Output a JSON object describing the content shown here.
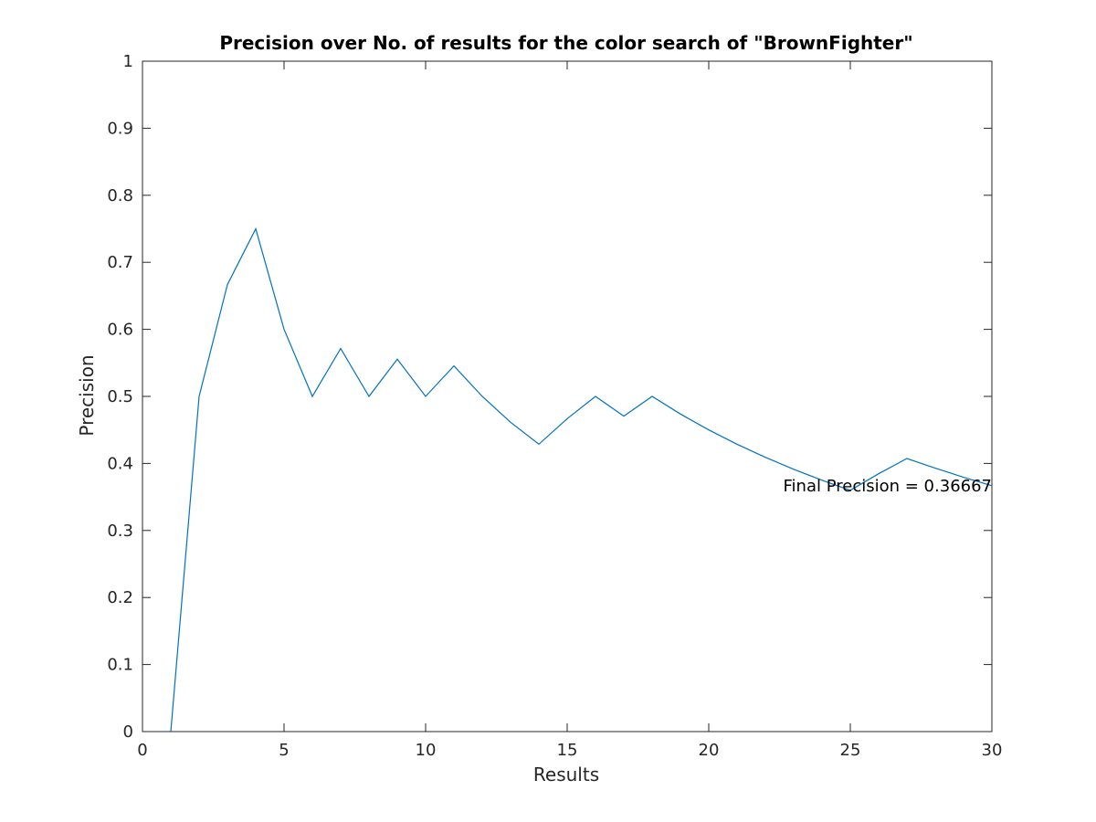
{
  "chart_data": {
    "type": "line",
    "title": "Precision over No. of results for the color search of \"BrownFighter\"",
    "xlabel": "Results",
    "ylabel": "Precision",
    "xlim": [
      0,
      30
    ],
    "ylim": [
      0,
      1
    ],
    "xticks": [
      0,
      5,
      10,
      15,
      20,
      25,
      30
    ],
    "yticks": [
      0,
      0.1,
      0.2,
      0.3,
      0.4,
      0.5,
      0.6,
      0.7,
      0.8,
      0.9,
      1
    ],
    "xtick_labels": [
      "0",
      "5",
      "10",
      "15",
      "20",
      "25",
      "30"
    ],
    "ytick_labels": [
      "0",
      "0.1",
      "0.2",
      "0.3",
      "0.4",
      "0.5",
      "0.6",
      "0.7",
      "0.8",
      "0.9",
      "1"
    ],
    "grid": false,
    "series": [
      {
        "color": "#0072bd",
        "x": [
          1,
          2,
          3,
          4,
          5,
          6,
          7,
          8,
          9,
          10,
          11,
          12,
          13,
          14,
          15,
          16,
          17,
          18,
          19,
          20,
          21,
          22,
          23,
          24,
          25,
          26,
          27,
          28,
          29,
          30
        ],
        "y": [
          0,
          0.5,
          0.6667,
          0.75,
          0.6,
          0.5,
          0.5714,
          0.5,
          0.5556,
          0.5,
          0.5455,
          0.5,
          0.4615,
          0.4286,
          0.4667,
          0.5,
          0.4706,
          0.5,
          0.4737,
          0.45,
          0.4286,
          0.4091,
          0.3913,
          0.375,
          0.36,
          0.3846,
          0.4074,
          0.3929,
          0.3793,
          0.3667
        ]
      }
    ],
    "annotations": [
      {
        "text": "Final Precision = 0.36667",
        "x": 30,
        "y": 0.36667,
        "anchor": "end"
      }
    ]
  }
}
